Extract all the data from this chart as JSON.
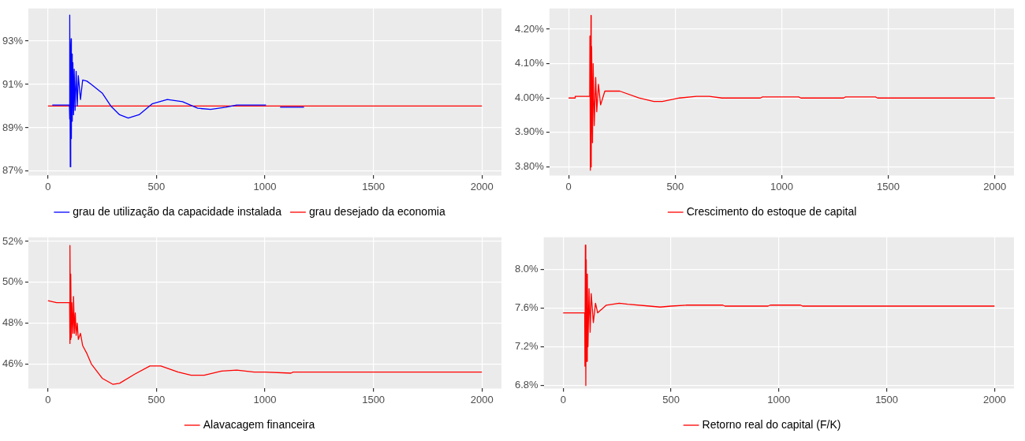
{
  "chart_data": [
    {
      "type": "line",
      "xlim": [
        -90,
        2090
      ],
      "xticks": [
        0,
        500,
        1000,
        1500,
        2000
      ],
      "ylim": [
        86.8,
        94.5
      ],
      "yticks": [
        {
          "value": 87,
          "label": "87%"
        },
        {
          "value": 89,
          "label": "89%"
        },
        {
          "value": 91,
          "label": "91%"
        },
        {
          "value": 93,
          "label": "93%"
        }
      ],
      "grid": true,
      "legend": "bottom",
      "series": [
        {
          "name": "grau de utilização da capacidade instalada",
          "color": "#0000ff",
          "x": [
            20,
            99,
            100,
            101,
            103,
            105,
            107,
            108,
            110,
            112,
            115,
            118,
            121,
            125,
            130,
            135,
            140,
            150,
            160,
            180,
            200,
            250,
            290,
            330,
            370,
            420,
            480,
            550,
            620,
            690,
            750,
            820,
            870,
            1005,
            1010,
            1070,
            1180
          ],
          "values": [
            90.05,
            90.05,
            89.4,
            94.2,
            87.2,
            92.5,
            93.1,
            88.5,
            92.4,
            89.3,
            92.0,
            89.6,
            91.7,
            89.8,
            91.6,
            90.0,
            91.4,
            90.3,
            91.2,
            91.15,
            91.0,
            90.6,
            90.0,
            89.6,
            89.45,
            89.6,
            90.1,
            90.3,
            90.2,
            89.9,
            89.85,
            89.95,
            90.05,
            90.05,
            null,
            89.95,
            89.95
          ]
        },
        {
          "name": "grau desejado da economia",
          "color": "#ff0000",
          "x": [
            0,
            2000
          ],
          "values": [
            90,
            90
          ]
        }
      ]
    },
    {
      "type": "line",
      "xlim": [
        -90,
        2090
      ],
      "xticks": [
        0,
        500,
        1000,
        1500,
        2000
      ],
      "ylim": [
        3.775,
        4.26
      ],
      "yticks": [
        {
          "value": 3.8,
          "label": "3.80%"
        },
        {
          "value": 3.9,
          "label": "3.90%"
        },
        {
          "value": 4.0,
          "label": "4.00%"
        },
        {
          "value": 4.1,
          "label": "4.10%"
        },
        {
          "value": 4.2,
          "label": "4.20%"
        }
      ],
      "grid": true,
      "legend": "bottom",
      "series": [
        {
          "name": "Crescimento do estoque de capital",
          "color": "#ff0000",
          "x": [
            0,
            30,
            31,
            99,
            100,
            102,
            105,
            106,
            108,
            112,
            115,
            120,
            127,
            132,
            140,
            150,
            170,
            240,
            330,
            400,
            440,
            520,
            600,
            660,
            720,
            900,
            910,
            1080,
            1090,
            1290,
            1300,
            1440,
            1450,
            2000
          ],
          "values": [
            4.0,
            4.0,
            4.005,
            4.005,
            4.18,
            3.79,
            4.24,
            3.8,
            4.15,
            3.87,
            4.1,
            3.92,
            4.06,
            3.96,
            4.04,
            3.98,
            4.02,
            4.02,
            4.0,
            3.99,
            3.99,
            4.0,
            4.005,
            4.005,
            4.0,
            4.0,
            4.003,
            4.003,
            4.0,
            4.0,
            4.003,
            4.003,
            4.0,
            4.0
          ]
        }
      ]
    },
    {
      "type": "line",
      "xlim": [
        -90,
        2090
      ],
      "xticks": [
        0,
        500,
        1000,
        1500,
        2000
      ],
      "ylim": [
        44.8,
        52.2
      ],
      "yticks": [
        {
          "value": 46,
          "label": "46%"
        },
        {
          "value": 48,
          "label": "48%"
        },
        {
          "value": 50,
          "label": "50%"
        },
        {
          "value": 52,
          "label": "52%"
        }
      ],
      "grid": true,
      "legend": "bottom",
      "series": [
        {
          "name": "Alavacagem financeira",
          "color": "#ff0000",
          "x": [
            0,
            40,
            100,
            101,
            102,
            104,
            105,
            108,
            110,
            115,
            118,
            122,
            126,
            130,
            135,
            140,
            150,
            160,
            180,
            200,
            250,
            300,
            330,
            400,
            470,
            520,
            600,
            660,
            720,
            800,
            870,
            950,
            1000,
            1120,
            1130,
            2000
          ],
          "values": [
            49.1,
            49.0,
            49.0,
            47.0,
            51.8,
            47.2,
            50.4,
            47.3,
            49.0,
            47.5,
            49.3,
            47.5,
            48.5,
            47.4,
            48.0,
            47.2,
            47.5,
            46.9,
            46.5,
            46.0,
            45.3,
            45.0,
            45.05,
            45.5,
            45.9,
            45.9,
            45.6,
            45.45,
            45.45,
            45.65,
            45.7,
            45.6,
            45.6,
            45.55,
            45.6,
            45.6
          ]
        }
      ]
    },
    {
      "type": "line",
      "xlim": [
        -90,
        2090
      ],
      "xticks": [
        0,
        500,
        1000,
        1500,
        2000
      ],
      "ylim": [
        6.77,
        8.33
      ],
      "yticks": [
        {
          "value": 6.8,
          "label": "6.8%"
        },
        {
          "value": 7.2,
          "label": "7.2%"
        },
        {
          "value": 7.6,
          "label": "7.6%"
        },
        {
          "value": 8.0,
          "label": "8.0%"
        }
      ],
      "grid": true,
      "legend": "bottom",
      "series": [
        {
          "name": "Retorno real do capital (F/K)",
          "color": "#ff0000",
          "x": [
            0,
            100,
            101,
            103,
            105,
            107,
            109,
            112,
            115,
            120,
            125,
            130,
            140,
            150,
            160,
            200,
            260,
            300,
            400,
            450,
            500,
            570,
            740,
            750,
            950,
            960,
            1100,
            1110,
            2000
          ],
          "values": [
            7.55,
            7.55,
            7.0,
            8.25,
            6.8,
            8.1,
            7.05,
            7.95,
            7.2,
            7.8,
            7.35,
            7.75,
            7.45,
            7.65,
            7.55,
            7.63,
            7.65,
            7.64,
            7.62,
            7.61,
            7.62,
            7.63,
            7.63,
            7.62,
            7.62,
            7.63,
            7.63,
            7.62,
            7.62
          ]
        }
      ]
    }
  ]
}
